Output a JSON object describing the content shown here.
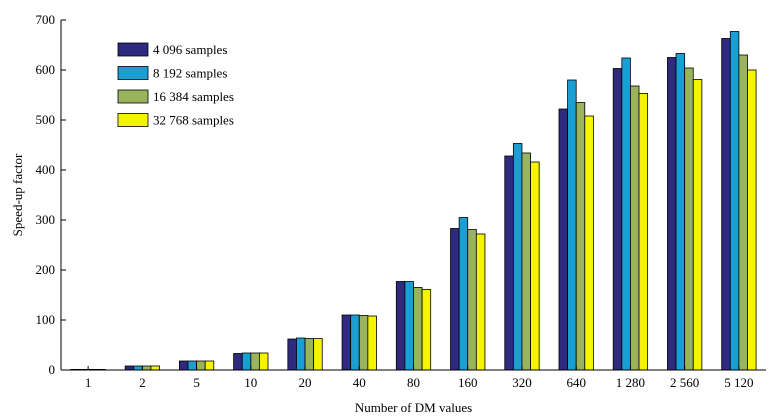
{
  "chart_data": {
    "type": "bar",
    "title": "",
    "xlabel": "Number of DM values",
    "ylabel": "Speed-up factor",
    "ylim": [
      0,
      700
    ],
    "yticks": [
      0,
      100,
      200,
      300,
      400,
      500,
      600,
      700
    ],
    "grid": false,
    "legend_position": "top-left",
    "categories": [
      "1",
      "2",
      "5",
      "10",
      "20",
      "40",
      "80",
      "160",
      "320",
      "640",
      "1 280",
      "2 560",
      "5 120"
    ],
    "series": [
      {
        "name": "4 096 samples",
        "color": "#2e2a7e",
        "values": [
          1,
          8,
          18,
          33,
          62,
          110,
          177,
          283,
          428,
          522,
          603,
          625,
          663
        ]
      },
      {
        "name": "8 192 samples",
        "color": "#1a9fd4",
        "values": [
          1,
          8,
          18,
          34,
          64,
          110,
          177,
          305,
          453,
          580,
          624,
          633,
          677
        ]
      },
      {
        "name": "16 384 samples",
        "color": "#9ab45e",
        "values": [
          1,
          8,
          18,
          34,
          63,
          109,
          165,
          281,
          434,
          535,
          568,
          604,
          630
        ]
      },
      {
        "name": "32 768 samples",
        "color": "#f5f500",
        "values": [
          1,
          8,
          18,
          34,
          63,
          108,
          161,
          272,
          416,
          508,
          553,
          581,
          600
        ]
      }
    ]
  }
}
